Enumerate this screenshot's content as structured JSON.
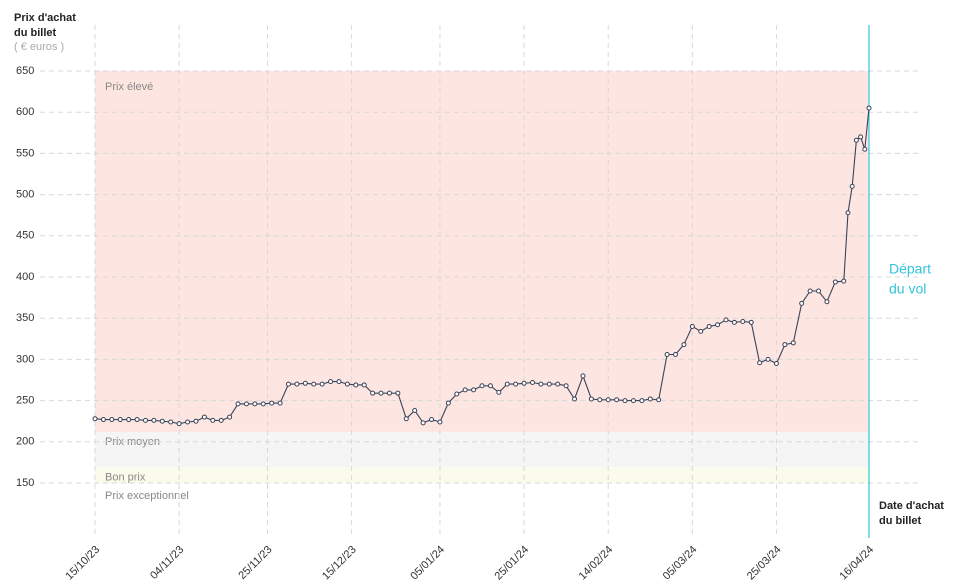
{
  "chart_data": {
    "type": "line",
    "y_label_lines": [
      "Prix d'achat",
      "du billet"
    ],
    "y_unit": "( € euros )",
    "x_label_lines": [
      "Date d'achat",
      "du billet"
    ],
    "departure_lines": [
      "Départ",
      "du vol"
    ],
    "departure_date": "16/04/24",
    "departure_color": "#33c3dc",
    "color": "#3b4358",
    "grid": true,
    "bands": [
      {
        "label": "Prix élevé",
        "from": 212,
        "to": 650,
        "color": "#fde6e1"
      },
      {
        "label": "Prix moyen",
        "from": 169,
        "to": 212,
        "color": "#f5f5f5"
      },
      {
        "label": "Bon prix",
        "from": 150,
        "to": 169,
        "color": "#fbfbec"
      },
      {
        "label": "Prix exceptionnel",
        "to": 150
      }
    ],
    "ylim": [
      150,
      650
    ],
    "yticks": [
      150,
      200,
      250,
      300,
      350,
      400,
      450,
      500,
      550,
      600,
      650
    ],
    "xlim": [
      "15/10/23",
      "16/04/24"
    ],
    "xticks": [
      "15/10/23",
      "04/11/23",
      "25/11/23",
      "15/12/23",
      "05/01/24",
      "25/01/24",
      "14/02/24",
      "05/03/24",
      "25/03/24",
      "16/04/24"
    ],
    "x": [
      "15/10/23",
      "17/10/23",
      "19/10/23",
      "21/10/23",
      "23/10/23",
      "25/10/23",
      "27/10/23",
      "29/10/23",
      "31/10/23",
      "02/11/23",
      "04/11/23",
      "06/11/23",
      "08/11/23",
      "10/11/23",
      "12/11/23",
      "14/11/23",
      "16/11/23",
      "18/11/23",
      "20/11/23",
      "22/11/23",
      "24/11/23",
      "26/11/23",
      "28/11/23",
      "30/11/23",
      "02/12/23",
      "04/12/23",
      "06/12/23",
      "08/12/23",
      "10/12/23",
      "12/12/23",
      "14/12/23",
      "16/12/23",
      "18/12/23",
      "20/12/23",
      "22/12/23",
      "24/12/23",
      "26/12/23",
      "28/12/23",
      "30/12/23",
      "01/01/24",
      "03/01/24",
      "05/01/24",
      "07/01/24",
      "09/01/24",
      "11/01/24",
      "13/01/24",
      "15/01/24",
      "17/01/24",
      "19/01/24",
      "21/01/24",
      "23/01/24",
      "25/01/24",
      "27/01/24",
      "29/01/24",
      "31/01/24",
      "02/02/24",
      "04/02/24",
      "06/02/24",
      "08/02/24",
      "10/02/24",
      "12/02/24",
      "14/02/24",
      "16/02/24",
      "18/02/24",
      "20/02/24",
      "22/02/24",
      "24/02/24",
      "26/02/24",
      "28/02/24",
      "01/03/24",
      "03/03/24",
      "05/03/24",
      "07/03/24",
      "09/03/24",
      "11/03/24",
      "13/03/24",
      "15/03/24",
      "17/03/24",
      "19/03/24",
      "21/03/24",
      "23/03/24",
      "25/03/24",
      "27/03/24",
      "29/03/24",
      "31/03/24",
      "02/04/24",
      "04/04/24",
      "06/04/24",
      "08/04/24",
      "10/04/24",
      "11/04/24",
      "12/04/24",
      "13/04/24",
      "14/04/24",
      "15/04/24",
      "16/04/24"
    ],
    "values": [
      228,
      227,
      227,
      227,
      227,
      227,
      226,
      226,
      225,
      224,
      222,
      224,
      225,
      230,
      226,
      226,
      230,
      246,
      246,
      246,
      246,
      247,
      247,
      270,
      270,
      271,
      270,
      270,
      273,
      273,
      270,
      269,
      269,
      259,
      259,
      259,
      259,
      228,
      238,
      223,
      227,
      224,
      247,
      258,
      263,
      263,
      268,
      268,
      260,
      270,
      270,
      271,
      272,
      270,
      270,
      270,
      268,
      252,
      280,
      252,
      251,
      251,
      251,
      250,
      250,
      250,
      252,
      251,
      306,
      306,
      318,
      340,
      334,
      340,
      342,
      348,
      345,
      346,
      345,
      296,
      300,
      295,
      318,
      320,
      368,
      383,
      383,
      370,
      394,
      395,
      478,
      510,
      566,
      570,
      555,
      605
    ]
  }
}
